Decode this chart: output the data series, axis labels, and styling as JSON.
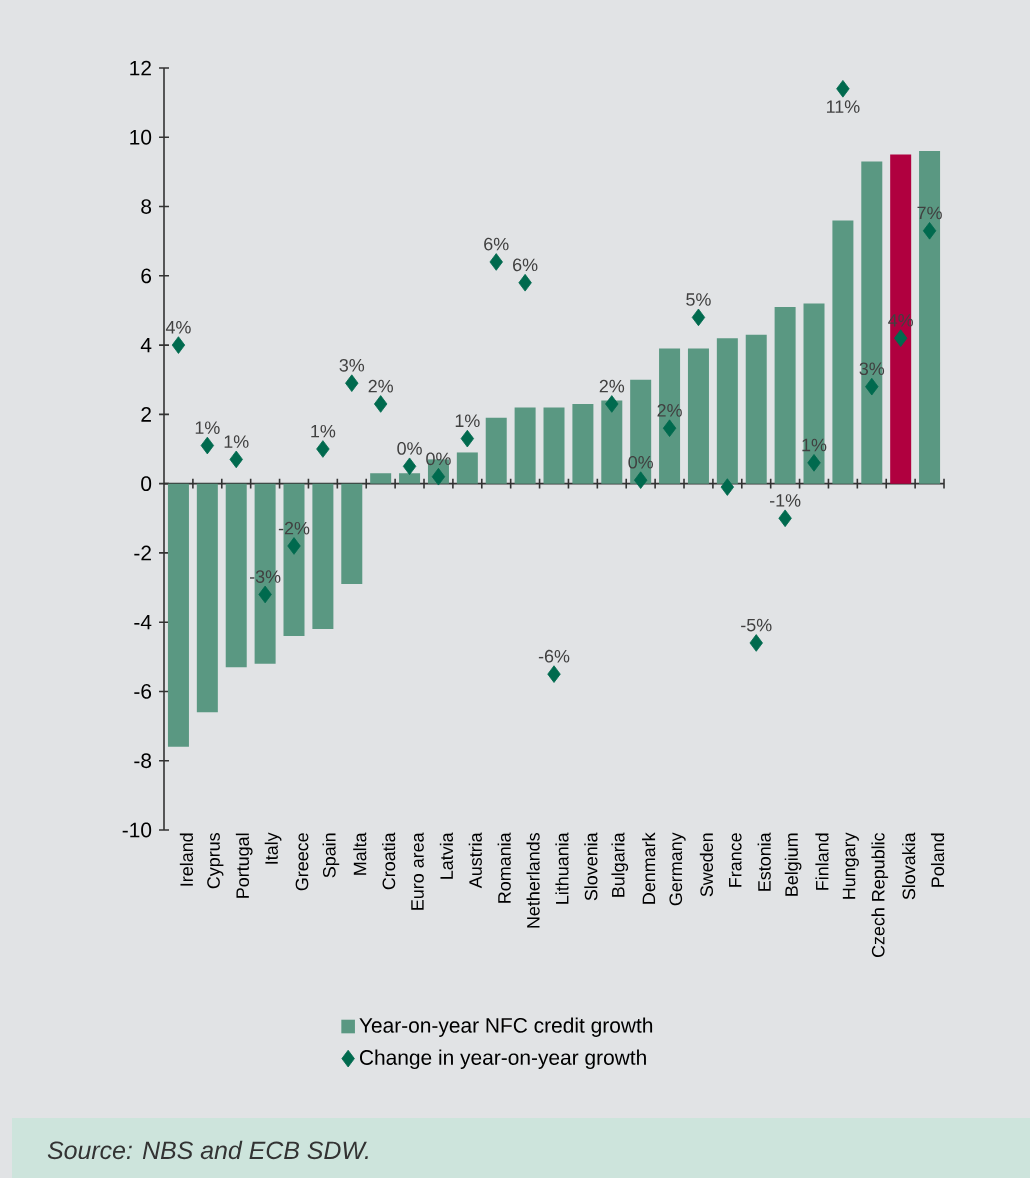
{
  "chart_data": {
    "type": "bar",
    "categories": [
      "Ireland",
      "Cyprus",
      "Portugal",
      "Italy",
      "Greece",
      "Spain",
      "Malta",
      "Croatia",
      "Euro area",
      "Latvia",
      "Austria",
      "Romania",
      "Netherlands",
      "Lithuania",
      "Slovenia",
      "Bulgaria",
      "Denmark",
      "Germany",
      "Sweden",
      "France",
      "Estonia",
      "Belgium",
      "Finland",
      "Hungary",
      "Czech Republic",
      "Slovakia",
      "Poland"
    ],
    "series": [
      {
        "name": "Year-on-year NFC credit growth",
        "type": "bar",
        "color": "#5a9882",
        "colors": [
          "#5a9882",
          "#5a9882",
          "#5a9882",
          "#5a9882",
          "#5a9882",
          "#5a9882",
          "#5a9882",
          "#5a9882",
          "#5a9882",
          "#5a9882",
          "#5a9882",
          "#5a9882",
          "#5a9882",
          "#5a9882",
          "#5a9882",
          "#5a9882",
          "#5a9882",
          "#5a9882",
          "#5a9882",
          "#5a9882",
          "#5a9882",
          "#5a9882",
          "#5a9882",
          "#5a9882",
          "#5a9882",
          "#b0003f",
          "#5a9882"
        ],
        "values": [
          -7.6,
          -6.6,
          -5.3,
          -5.2,
          -4.4,
          -4.2,
          -2.9,
          0.3,
          0.3,
          0.7,
          0.9,
          1.9,
          2.2,
          2.2,
          2.3,
          2.4,
          3.0,
          3.9,
          3.9,
          4.2,
          4.3,
          5.1,
          5.2,
          7.6,
          9.3,
          9.5,
          9.6
        ]
      },
      {
        "name": "Change in year-on-year growth",
        "type": "scatter",
        "color": "#006a4e",
        "marker": "diamond",
        "values": [
          4.0,
          1.1,
          0.7,
          -3.2,
          -1.8,
          1.0,
          2.9,
          2.3,
          0.5,
          0.2,
          1.3,
          6.4,
          5.8,
          -5.5,
          null,
          2.3,
          0.1,
          1.6,
          4.8,
          -0.1,
          -4.6,
          -1.0,
          0.6,
          11.4,
          2.8,
          4.2,
          7.3
        ],
        "value_labels": [
          "4%",
          "1%",
          "1%",
          "-3%",
          "-2%",
          "1%",
          "3%",
          "2%",
          "0%",
          "0%",
          "1%",
          "6%",
          "6%",
          "-6%",
          null,
          "2%",
          "0%",
          "2%",
          "5%",
          null,
          "-5%",
          "-1%",
          "1%",
          "11%",
          "3%",
          "4%",
          "7%"
        ]
      }
    ],
    "ylim": [
      -10,
      12
    ],
    "yticks": [
      -10,
      -8,
      -6,
      -4,
      -2,
      0,
      2,
      4,
      6,
      8,
      10,
      12
    ],
    "legend": "bottom",
    "annotations": [
      "Source: NBS and ECB SDW."
    ]
  }
}
